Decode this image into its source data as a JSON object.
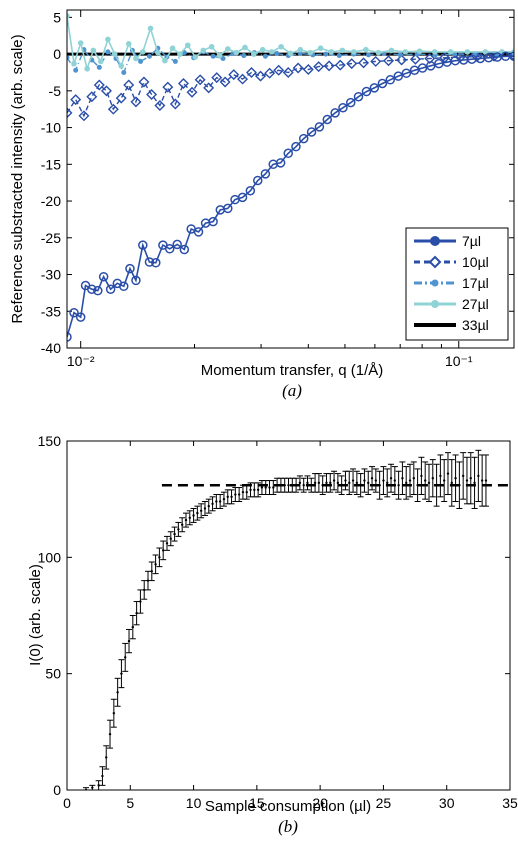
{
  "chart_data": [
    {
      "id": "a",
      "type": "line",
      "caption": "(a)",
      "xlabel": "Momentum transfer, q (1/Å)",
      "ylabel": "Reference substracted intensity (arb. scale)",
      "xscale": "log",
      "xlim": [
        0.0092,
        0.14
      ],
      "ylim": [
        -40,
        6
      ],
      "yticks": [
        5,
        0,
        -5,
        -10,
        -15,
        -20,
        -25,
        -30,
        -35,
        -40
      ],
      "xticks": [
        {
          "value": 0.01,
          "label": "10⁻²"
        },
        {
          "value": 0.1,
          "label": "10⁻¹"
        }
      ],
      "legend": {
        "position": "bottom-right",
        "entries": [
          "7µl",
          "10µl",
          "17µl",
          "27µl",
          "33µl"
        ]
      },
      "series": [
        {
          "name": "7µl",
          "color": "#2a4ea8",
          "marker": "circle",
          "x": [
            0.0092,
            0.0096,
            0.01,
            0.0103,
            0.0107,
            0.0111,
            0.0115,
            0.012,
            0.0125,
            0.013,
            0.0135,
            0.014,
            0.0146,
            0.0152,
            0.0158,
            0.0165,
            0.0172,
            0.018,
            0.0188,
            0.0196,
            0.0205,
            0.0214,
            0.0224,
            0.0234,
            0.0245,
            0.0256,
            0.0268,
            0.0281,
            0.0294,
            0.0308,
            0.0323,
            0.0338,
            0.0354,
            0.0371,
            0.0389,
            0.0408,
            0.0428,
            0.0449,
            0.0471,
            0.0494,
            0.0518,
            0.0543,
            0.057,
            0.0598,
            0.0628,
            0.0659,
            0.0692,
            0.0727,
            0.0764,
            0.0802,
            0.0843,
            0.0886,
            0.0931,
            0.0979,
            0.103,
            0.1083,
            0.114,
            0.12,
            0.1265,
            0.133,
            0.14
          ],
          "y": [
            -38.5,
            -35.2,
            -35.8,
            -31.5,
            -32.0,
            -32.2,
            -30.3,
            -32.0,
            -31.2,
            -31.6,
            -29.2,
            -30.8,
            -26.0,
            -28.3,
            -28.4,
            -26.0,
            -26.5,
            -25.9,
            -26.6,
            -23.8,
            -24.2,
            -23.0,
            -22.8,
            -21.2,
            -21.0,
            -19.8,
            -19.5,
            -18.6,
            -17.2,
            -16.3,
            -15.0,
            -14.8,
            -13.5,
            -12.6,
            -11.5,
            -10.6,
            -9.9,
            -8.9,
            -8.0,
            -7.3,
            -6.6,
            -5.8,
            -5.1,
            -4.6,
            -4.0,
            -3.5,
            -3.0,
            -2.6,
            -2.2,
            -1.9,
            -1.6,
            -1.3,
            -1.1,
            -0.9,
            -0.8,
            -0.7,
            -0.6,
            -0.5,
            -0.4,
            -0.3,
            -0.3
          ]
        },
        {
          "name": "10µl",
          "color": "#2a4ea8",
          "marker": "diamond",
          "x": [
            0.0092,
            0.0097,
            0.0102,
            0.0107,
            0.0112,
            0.0117,
            0.0122,
            0.0128,
            0.0134,
            0.014,
            0.0147,
            0.0154,
            0.0162,
            0.017,
            0.0178,
            0.0187,
            0.0197,
            0.0207,
            0.0218,
            0.0229,
            0.0241,
            0.0254,
            0.0268,
            0.0283,
            0.0299,
            0.0316,
            0.0334,
            0.0354,
            0.0376,
            0.04,
            0.0426,
            0.0454,
            0.0486,
            0.0521,
            0.056,
            0.0603,
            0.0652,
            0.0706,
            0.0768,
            0.0838,
            0.0918,
            0.101,
            0.1117,
            0.124,
            0.14
          ],
          "y": [
            -8.0,
            -6.2,
            -8.4,
            -5.8,
            -4.2,
            -5.0,
            -7.5,
            -6.0,
            -4.2,
            -6.5,
            -3.8,
            -5.5,
            -7.0,
            -4.5,
            -6.8,
            -4.0,
            -5.2,
            -3.5,
            -4.6,
            -3.2,
            -3.8,
            -2.8,
            -3.4,
            -2.5,
            -3.0,
            -2.6,
            -2.2,
            -2.5,
            -1.9,
            -2.1,
            -1.7,
            -1.6,
            -1.5,
            -1.3,
            -1.2,
            -1.0,
            -0.9,
            -0.8,
            -0.7,
            -0.6,
            -0.5,
            -0.4,
            -0.35,
            -0.3,
            -0.2
          ]
        },
        {
          "name": "17µl",
          "color": "#4f93cf",
          "marker": "dot",
          "x": [
            0.0092,
            0.0097,
            0.0102,
            0.0107,
            0.0112,
            0.0118,
            0.0124,
            0.013,
            0.0137,
            0.0144,
            0.0152,
            0.016,
            0.0169,
            0.0178,
            0.0188,
            0.0199,
            0.0211,
            0.0224,
            0.0238,
            0.0253,
            0.027,
            0.0288,
            0.0308,
            0.033,
            0.0354,
            0.0381,
            0.0411,
            0.0445,
            0.0483,
            0.0527,
            0.0577,
            0.0634,
            0.07,
            0.0777,
            0.0867,
            0.0975,
            0.1105,
            0.126,
            0.14
          ],
          "y": [
            -0.5,
            -2.2,
            0.6,
            -0.8,
            -1.8,
            0.3,
            -0.6,
            -2.5,
            0.5,
            -1.0,
            -0.3,
            0.8,
            -0.4,
            -1.0,
            0.2,
            -0.5,
            0.3,
            -0.3,
            -0.6,
            0.1,
            -0.2,
            0.2,
            -0.3,
            0.1,
            -0.2,
            0.1,
            -0.1,
            0.0,
            -0.2,
            0.0,
            -0.1,
            0.1,
            -0.1,
            0.0,
            -0.1,
            0.0,
            0.0,
            0.0,
            0.0
          ]
        },
        {
          "name": "27µl",
          "color": "#8fd3d6",
          "marker": "pentagon",
          "x": [
            0.0092,
            0.0096,
            0.01,
            0.0104,
            0.0108,
            0.0113,
            0.0118,
            0.0123,
            0.0128,
            0.0134,
            0.014,
            0.0146,
            0.0153,
            0.016,
            0.0167,
            0.0175,
            0.0183,
            0.0192,
            0.0201,
            0.0211,
            0.0222,
            0.0233,
            0.0245,
            0.0258,
            0.0272,
            0.0287,
            0.0303,
            0.032,
            0.0339,
            0.0359,
            0.0381,
            0.0405,
            0.0431,
            0.046,
            0.0492,
            0.0528,
            0.0568,
            0.0613,
            0.0664,
            0.0722,
            0.0788,
            0.0864,
            0.0952,
            0.1054,
            0.1175,
            0.13,
            0.14
          ],
          "y": [
            5.2,
            -1.3,
            1.5,
            -2.0,
            0.5,
            -1.0,
            2.0,
            0.0,
            -1.6,
            1.4,
            -0.6,
            0.3,
            3.5,
            0.2,
            -0.9,
            0.8,
            0.0,
            1.2,
            -0.4,
            0.5,
            1.0,
            -0.2,
            0.7,
            0.2,
            0.9,
            0.0,
            0.6,
            0.3,
            1.0,
            0.1,
            0.6,
            0.2,
            0.8,
            0.3,
            0.5,
            0.3,
            0.6,
            0.2,
            0.5,
            0.3,
            0.4,
            0.3,
            0.3,
            0.3,
            0.3,
            0.3,
            0.3
          ]
        },
        {
          "name": "33µl",
          "color": "#000000",
          "marker": "none",
          "x": [
            0.0092,
            0.14
          ],
          "y": [
            0,
            0
          ]
        }
      ]
    },
    {
      "id": "b",
      "type": "scatter",
      "caption": "(b)",
      "xlabel": "Sample consumption (µl)",
      "ylabel": "I(0) (arb. scale)",
      "xlim": [
        0,
        35
      ],
      "ylim": [
        0,
        150
      ],
      "xticks": [
        0,
        5,
        10,
        15,
        20,
        25,
        30,
        35
      ],
      "yticks": [
        0,
        50,
        100,
        150
      ],
      "reference_line": {
        "y": 131,
        "x_start": 7.5,
        "x_end": 35,
        "style": "dashed"
      },
      "points": {
        "x": [
          1.5,
          2.0,
          2.5,
          2.8,
          3.1,
          3.4,
          3.7,
          4.0,
          4.3,
          4.6,
          4.9,
          5.2,
          5.5,
          5.8,
          6.1,
          6.4,
          6.7,
          7.0,
          7.3,
          7.6,
          7.9,
          8.2,
          8.5,
          8.8,
          9.1,
          9.4,
          9.7,
          10.0,
          10.3,
          10.6,
          10.9,
          11.2,
          11.5,
          11.8,
          12.1,
          12.4,
          12.7,
          13.0,
          13.3,
          13.6,
          13.9,
          14.2,
          14.5,
          14.8,
          15.1,
          15.4,
          15.7,
          16.0,
          16.3,
          16.6,
          16.9,
          17.2,
          17.5,
          17.8,
          18.1,
          18.4,
          18.7,
          19.0,
          19.3,
          19.6,
          19.9,
          20.2,
          20.5,
          20.8,
          21.1,
          21.4,
          21.7,
          22.0,
          22.3,
          22.6,
          22.9,
          23.2,
          23.5,
          23.8,
          24.1,
          24.4,
          24.7,
          25.0,
          25.3,
          25.6,
          25.9,
          26.2,
          26.5,
          26.8,
          27.1,
          27.4,
          27.7,
          28.0,
          28.3,
          28.6,
          28.9,
          29.2,
          29.5,
          29.8,
          30.1,
          30.4,
          30.7,
          31.0,
          31.3,
          31.6,
          31.9,
          32.2,
          32.5,
          32.8,
          33.1
        ],
        "y": [
          0,
          1,
          2,
          6,
          14,
          24,
          33,
          42,
          50,
          57,
          64,
          70,
          76,
          81,
          86,
          90,
          94,
          97,
          100,
          103,
          106,
          108,
          110,
          112,
          114,
          116,
          117,
          118,
          119,
          120,
          121,
          122,
          123,
          124,
          124,
          125,
          126,
          126,
          127,
          127,
          128,
          128,
          129,
          129,
          129,
          130,
          130,
          130,
          130,
          131,
          131,
          131,
          131,
          131,
          131,
          132,
          131,
          132,
          131,
          132,
          132,
          131,
          132,
          132,
          133,
          132,
          131,
          133,
          132,
          133,
          132,
          131,
          133,
          132,
          134,
          133,
          131,
          133,
          132,
          134,
          133,
          131,
          134,
          132,
          133,
          134,
          131,
          135,
          133,
          132,
          134,
          131,
          135,
          133,
          136,
          132,
          134,
          131,
          135,
          133,
          134,
          132,
          135,
          133,
          133
        ],
        "err": [
          1,
          1,
          2,
          4,
          5,
          6,
          6,
          6,
          6,
          6,
          5,
          5,
          5,
          5,
          4,
          4,
          4,
          4,
          4,
          4,
          3,
          3,
          3,
          3,
          3,
          3,
          3,
          3,
          3,
          3,
          3,
          3,
          3,
          3,
          3,
          3,
          3,
          3,
          3,
          3,
          3,
          3,
          3,
          3,
          3,
          3,
          3,
          3,
          3,
          3,
          3,
          3,
          3,
          3,
          3,
          3,
          3,
          3,
          3,
          4,
          4,
          4,
          4,
          4,
          4,
          4,
          4,
          4,
          5,
          5,
          5,
          5,
          5,
          5,
          5,
          5,
          6,
          6,
          6,
          6,
          6,
          6,
          7,
          7,
          7,
          7,
          7,
          8,
          8,
          8,
          8,
          9,
          9,
          9,
          9,
          10,
          10,
          10,
          10,
          10,
          11,
          11,
          11,
          11,
          11
        ]
      }
    }
  ]
}
